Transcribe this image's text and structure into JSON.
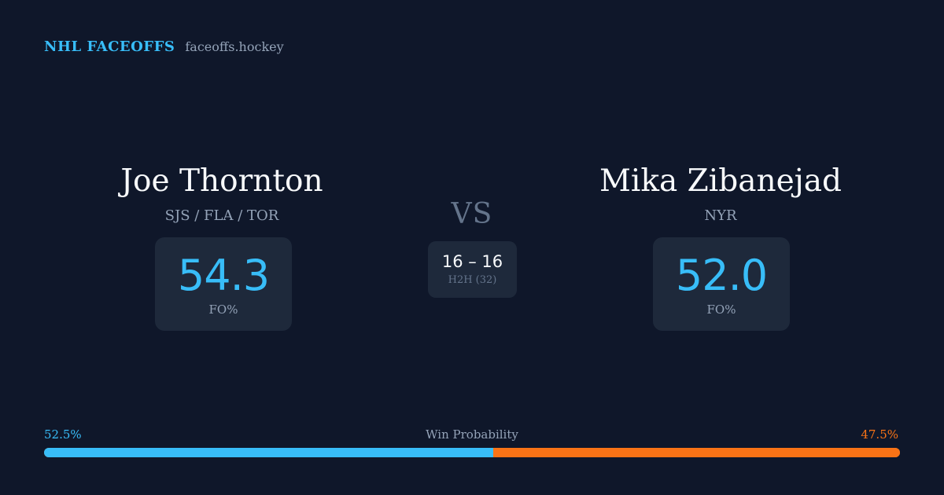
{
  "brand": {
    "name": "NHL FACEOFFS",
    "url": "faceoffs.hockey"
  },
  "matchup": {
    "vs_label": "VS",
    "h2h": {
      "score": "16 – 16",
      "label": "H2H (32)"
    }
  },
  "players": {
    "left": {
      "name": "Joe Thornton",
      "teams": "SJS / FLA / TOR",
      "fo_value": "54.3",
      "fo_label": "FO%"
    },
    "right": {
      "name": "Mika Zibanejad",
      "teams": "NYR",
      "fo_value": "52.0",
      "fo_label": "FO%"
    }
  },
  "win_probability": {
    "title": "Win Probability",
    "left_label": "52.5%",
    "right_label": "47.5%",
    "left_fraction": 0.525,
    "right_fraction": 0.475
  },
  "colors": {
    "background": "#0f172a",
    "card": "#1e293b",
    "accent_left": "#38bdf8",
    "accent_right": "#f97316"
  }
}
